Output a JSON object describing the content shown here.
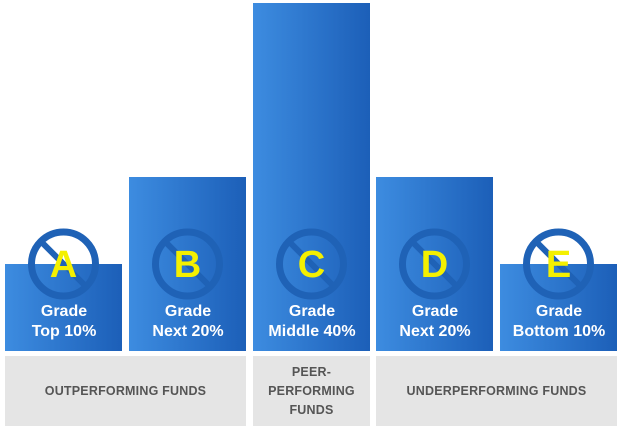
{
  "chart_data": {
    "type": "bar",
    "title": "",
    "xlabel": "",
    "ylabel": "",
    "categories": [
      "A",
      "B",
      "C",
      "D",
      "E"
    ],
    "values": [
      10,
      20,
      40,
      20,
      10
    ],
    "ylim": [
      0,
      40
    ],
    "grid": false,
    "bar_labels": [
      {
        "grade": "A",
        "line1": "Grade",
        "line2": "Top 10%"
      },
      {
        "grade": "B",
        "line1": "Grade",
        "line2": "Next 20%"
      },
      {
        "grade": "C",
        "line1": "Grade",
        "line2": "Middle 40%"
      },
      {
        "grade": "D",
        "line1": "Grade",
        "line2": "Next 20%"
      },
      {
        "grade": "E",
        "line1": "Grade",
        "line2": "Bottom 10%"
      }
    ],
    "groups": {
      "outperforming": "OUTPERFORMING FUNDS",
      "peer_line1": "PEER-",
      "peer_line2": "PERFORMING",
      "peer_line3": "FUNDS",
      "underperforming": "UNDERPERFORMING FUNDS"
    },
    "colors": {
      "bar_light": "#3d8ce0",
      "bar_dark": "#1c5fb8",
      "grade_letter": "#f4f000",
      "icon_circle": "#1f62b6",
      "band": "#e5e5e5"
    }
  }
}
